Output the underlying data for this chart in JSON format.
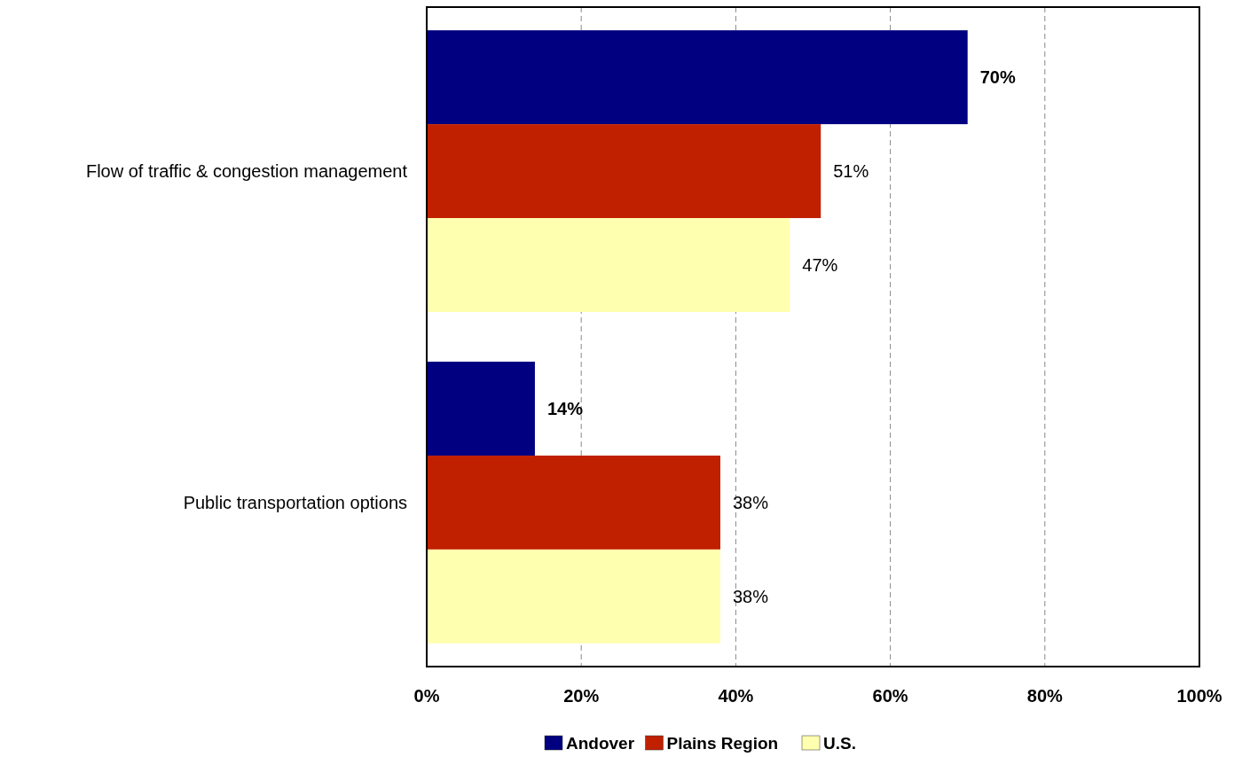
{
  "chart_data": {
    "type": "bar",
    "orientation": "horizontal",
    "categories": [
      "Flow of traffic & congestion management",
      "Public transportation options"
    ],
    "series": [
      {
        "name": "Andover",
        "color": "#000080",
        "values": [
          70,
          14
        ],
        "value_labels": [
          "70%",
          "14%"
        ]
      },
      {
        "name": "Plains Region",
        "color": "#c02000",
        "values": [
          51,
          38
        ],
        "value_labels": [
          "51%",
          "38%"
        ]
      },
      {
        "name": "U.S.",
        "color": "#ffffb0",
        "values": [
          47,
          38
        ],
        "value_labels": [
          "47%",
          "38%"
        ]
      }
    ],
    "xlim": [
      0,
      100
    ],
    "xticks": [
      {
        "value": 0,
        "label": "0%"
      },
      {
        "value": 20,
        "label": "20%"
      },
      {
        "value": 40,
        "label": "40%"
      },
      {
        "value": 60,
        "label": "60%"
      },
      {
        "value": 80,
        "label": "80%"
      },
      {
        "value": 100,
        "label": "100%"
      }
    ],
    "grid": "x",
    "legend": "bottom"
  }
}
